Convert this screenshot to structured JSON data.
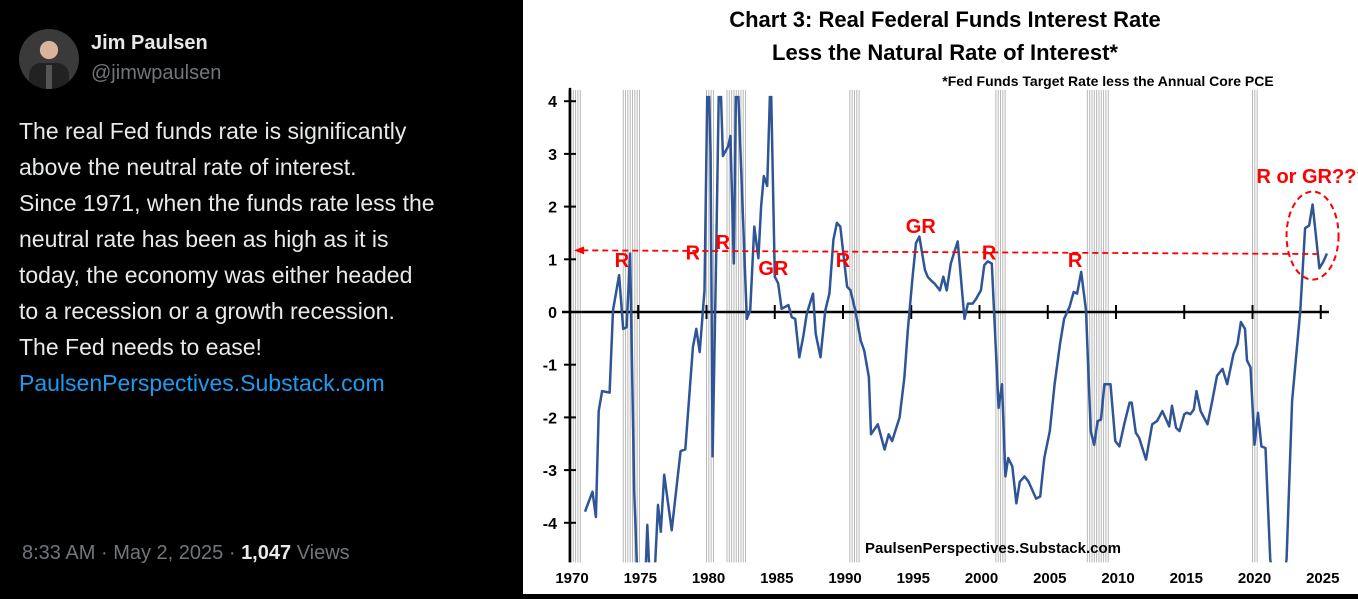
{
  "tweet": {
    "author_name": "Jim Paulsen",
    "author_handle": "@jimwpaulsen",
    "text": "The real Fed funds rate is significantly\nabove the neutral rate of interest.\nSince 1971, when the funds rate less the\nneutral rate has been as high as it is\ntoday, the economy was either headed\nto a recession or a growth recession.\nThe Fed needs to ease!",
    "link": "PaulsenPerspectives.Substack.com",
    "time": "8:33 AM",
    "date": "May 2, 2025",
    "views_count": "1,047",
    "views_label": "Views",
    "separator": "·",
    "link_color": "#1d9bf0"
  },
  "chart_data": {
    "type": "line",
    "title_line1": "Chart 3: Real Federal Funds Interest Rate",
    "title_line2": "Less the Natural Rate of Interest*",
    "subtitle": "*Fed Funds Target Rate less the Annual Core PCE",
    "watermark": "PaulsenPerspectives.Substack.com",
    "xlim": [
      1970,
      2025.5
    ],
    "ylim": [
      -4.75,
      4.1
    ],
    "x_ticks": [
      "1970",
      "1975",
      "1980",
      "1985",
      "1990",
      "1995",
      "2000",
      "2005",
      "2010",
      "2015",
      "2020",
      "2025"
    ],
    "y_ticks": [
      "4",
      "3",
      "2",
      "1",
      "0",
      "-1",
      "-2",
      "-3",
      "-4"
    ],
    "line_color": "#2f5597",
    "annotation_color": "#ff0000",
    "threshold_line": {
      "value_start": 1.17,
      "value_end": 1.1
    },
    "annotations": [
      {
        "text": "R",
        "x": 1973.8,
        "y": 0.85
      },
      {
        "text": "R",
        "x": 1979.0,
        "y": 1.0
      },
      {
        "text": "R",
        "x": 1981.2,
        "y": 1.2
      },
      {
        "text": "GR",
        "x": 1984.9,
        "y": 0.7
      },
      {
        "text": "R",
        "x": 1990.0,
        "y": 0.85
      },
      {
        "text": "GR",
        "x": 1995.7,
        "y": 1.5
      },
      {
        "text": "R",
        "x": 2000.7,
        "y": 1.0
      },
      {
        "text": "R",
        "x": 2007.0,
        "y": 0.85
      },
      {
        "text": "R or GR???",
        "x": 2024.4,
        "y": 2.45
      }
    ],
    "recession_bands": [
      [
        1969.9,
        1970.9
      ],
      [
        1973.9,
        1975.2
      ],
      [
        1980.0,
        1980.6
      ],
      [
        1981.5,
        1982.9
      ],
      [
        1990.5,
        1991.2
      ],
      [
        2001.2,
        2001.9
      ],
      [
        2007.9,
        2009.5
      ],
      [
        2020.0,
        2020.4
      ]
    ],
    "series": [
      {
        "points": [
          [
            1971.1,
            -3.79
          ],
          [
            1971.65,
            -3.41
          ],
          [
            1971.9,
            -3.89
          ],
          [
            1972.1,
            -1.88
          ],
          [
            1972.35,
            -1.5
          ],
          [
            1972.9,
            -1.53
          ],
          [
            1973.15,
            0.03
          ],
          [
            1973.6,
            0.7
          ],
          [
            1973.9,
            -0.32
          ],
          [
            1974.15,
            -0.29
          ],
          [
            1974.4,
            1.11
          ],
          [
            1974.7,
            -3.4
          ],
          [
            1975.0,
            -5.5
          ],
          [
            1975.5,
            -5.2
          ],
          [
            1975.66,
            -4.04
          ],
          [
            1975.9,
            -5.4
          ],
          [
            1976.2,
            -5.0
          ],
          [
            1976.45,
            -3.66
          ],
          [
            1976.65,
            -4.17
          ],
          [
            1976.9,
            -3.09
          ],
          [
            1977.45,
            -4.14
          ],
          [
            1978.1,
            -2.64
          ],
          [
            1978.45,
            -2.61
          ],
          [
            1979.0,
            -0.67
          ],
          [
            1979.25,
            -0.32
          ],
          [
            1979.5,
            -0.76
          ],
          [
            1979.85,
            0.41
          ],
          [
            1980.1,
            5.0
          ],
          [
            1980.3,
            3.0
          ],
          [
            1980.45,
            -2.74
          ],
          [
            1980.7,
            1.0
          ],
          [
            1980.95,
            5.0
          ],
          [
            1981.2,
            2.96
          ],
          [
            1981.6,
            3.15
          ],
          [
            1981.75,
            3.34
          ],
          [
            1982.0,
            0.92
          ],
          [
            1982.2,
            5.0
          ],
          [
            1982.5,
            3.0
          ],
          [
            1982.95,
            -0.13
          ],
          [
            1983.2,
            0.03
          ],
          [
            1983.5,
            1.62
          ],
          [
            1983.8,
            1.02
          ],
          [
            1984.0,
            2.0
          ],
          [
            1984.2,
            2.58
          ],
          [
            1984.45,
            2.39
          ],
          [
            1984.7,
            4.6
          ],
          [
            1985.0,
            0.67
          ],
          [
            1985.25,
            0.54
          ],
          [
            1985.5,
            0.06
          ],
          [
            1986.0,
            0.13
          ],
          [
            1986.25,
            -0.1
          ],
          [
            1986.5,
            -0.13
          ],
          [
            1986.8,
            -0.86
          ],
          [
            1987.1,
            -0.45
          ],
          [
            1987.35,
            -0.03
          ],
          [
            1987.8,
            0.35
          ],
          [
            1988.0,
            -0.41
          ],
          [
            1988.35,
            -0.86
          ],
          [
            1988.7,
            0.03
          ],
          [
            1989.0,
            0.35
          ],
          [
            1989.3,
            1.37
          ],
          [
            1989.55,
            1.69
          ],
          [
            1989.8,
            1.62
          ],
          [
            1990.3,
            0.48
          ],
          [
            1990.55,
            0.41
          ],
          [
            1990.9,
            0.03
          ],
          [
            1991.3,
            -0.54
          ],
          [
            1991.55,
            -0.73
          ],
          [
            1991.9,
            -1.24
          ],
          [
            1992.05,
            -2.32
          ],
          [
            1992.55,
            -2.13
          ],
          [
            1993.05,
            -2.61
          ],
          [
            1993.35,
            -2.32
          ],
          [
            1993.6,
            -2.45
          ],
          [
            1994.15,
            -2.0
          ],
          [
            1994.5,
            -1.24
          ],
          [
            1994.75,
            -0.35
          ],
          [
            1995.1,
            0.67
          ],
          [
            1995.35,
            1.31
          ],
          [
            1995.6,
            1.43
          ],
          [
            1996.0,
            0.8
          ],
          [
            1996.2,
            0.67
          ],
          [
            1996.45,
            0.6
          ],
          [
            1996.7,
            0.54
          ],
          [
            1997.1,
            0.41
          ],
          [
            1997.35,
            0.67
          ],
          [
            1997.6,
            0.41
          ],
          [
            1997.9,
            0.92
          ],
          [
            1998.4,
            1.34
          ],
          [
            1998.9,
            -0.13
          ],
          [
            1999.15,
            0.16
          ],
          [
            1999.5,
            0.16
          ],
          [
            1999.75,
            0.25
          ],
          [
            2000.1,
            0.41
          ],
          [
            2000.35,
            0.89
          ],
          [
            2000.6,
            0.96
          ],
          [
            2000.9,
            0.92
          ],
          [
            2001.4,
            -1.82
          ],
          [
            2001.65,
            -1.37
          ],
          [
            2001.9,
            -3.12
          ],
          [
            2002.1,
            -2.77
          ],
          [
            2002.4,
            -2.93
          ],
          [
            2002.7,
            -3.63
          ],
          [
            2002.95,
            -3.22
          ],
          [
            2003.3,
            -3.12
          ],
          [
            2003.6,
            -3.22
          ],
          [
            2004.15,
            -3.54
          ],
          [
            2004.45,
            -3.5
          ],
          [
            2004.75,
            -2.77
          ],
          [
            2005.15,
            -2.26
          ],
          [
            2005.5,
            -1.37
          ],
          [
            2005.9,
            -0.61
          ],
          [
            2006.2,
            -0.13
          ],
          [
            2006.6,
            0.1
          ],
          [
            2006.9,
            0.38
          ],
          [
            2007.15,
            0.35
          ],
          [
            2007.45,
            0.76
          ],
          [
            2007.8,
            0.03
          ],
          [
            2008.15,
            -2.26
          ],
          [
            2008.4,
            -2.52
          ],
          [
            2008.65,
            -2.07
          ],
          [
            2008.9,
            -2.04
          ],
          [
            2009.15,
            -1.37
          ],
          [
            2009.6,
            -1.37
          ],
          [
            2009.95,
            -2.45
          ],
          [
            2010.25,
            -2.55
          ],
          [
            2010.6,
            -2.13
          ],
          [
            2011.0,
            -1.72
          ],
          [
            2011.15,
            -1.72
          ],
          [
            2011.45,
            -2.29
          ],
          [
            2011.7,
            -2.39
          ],
          [
            2012.2,
            -2.8
          ],
          [
            2012.65,
            -2.13
          ],
          [
            2013.0,
            -2.07
          ],
          [
            2013.4,
            -1.88
          ],
          [
            2013.9,
            -2.17
          ],
          [
            2014.1,
            -1.78
          ],
          [
            2014.4,
            -2.2
          ],
          [
            2014.65,
            -2.26
          ],
          [
            2015.0,
            -1.94
          ],
          [
            2015.2,
            -1.91
          ],
          [
            2015.45,
            -1.94
          ],
          [
            2015.7,
            -1.85
          ],
          [
            2015.9,
            -1.5
          ],
          [
            2016.2,
            -1.88
          ],
          [
            2016.7,
            -2.13
          ],
          [
            2017.05,
            -1.69
          ],
          [
            2017.4,
            -1.21
          ],
          [
            2017.8,
            -1.08
          ],
          [
            2018.15,
            -1.37
          ],
          [
            2018.6,
            -0.8
          ],
          [
            2018.9,
            -0.61
          ],
          [
            2019.15,
            -0.19
          ],
          [
            2019.45,
            -0.32
          ],
          [
            2019.6,
            -0.92
          ],
          [
            2019.85,
            -1.05
          ],
          [
            2020.15,
            -2.52
          ],
          [
            2020.4,
            -1.91
          ],
          [
            2020.65,
            -2.55
          ],
          [
            2020.95,
            -2.58
          ],
          [
            2021.3,
            -4.68
          ],
          [
            2021.9,
            -6.0
          ],
          [
            2022.5,
            -4.68
          ],
          [
            2022.9,
            -1.69
          ],
          [
            2023.5,
            0.03
          ],
          [
            2023.85,
            1.59
          ],
          [
            2024.15,
            1.64
          ],
          [
            2024.4,
            2.04
          ],
          [
            2024.9,
            0.83
          ],
          [
            2025.2,
            0.96
          ],
          [
            2025.45,
            1.11
          ]
        ]
      }
    ]
  }
}
